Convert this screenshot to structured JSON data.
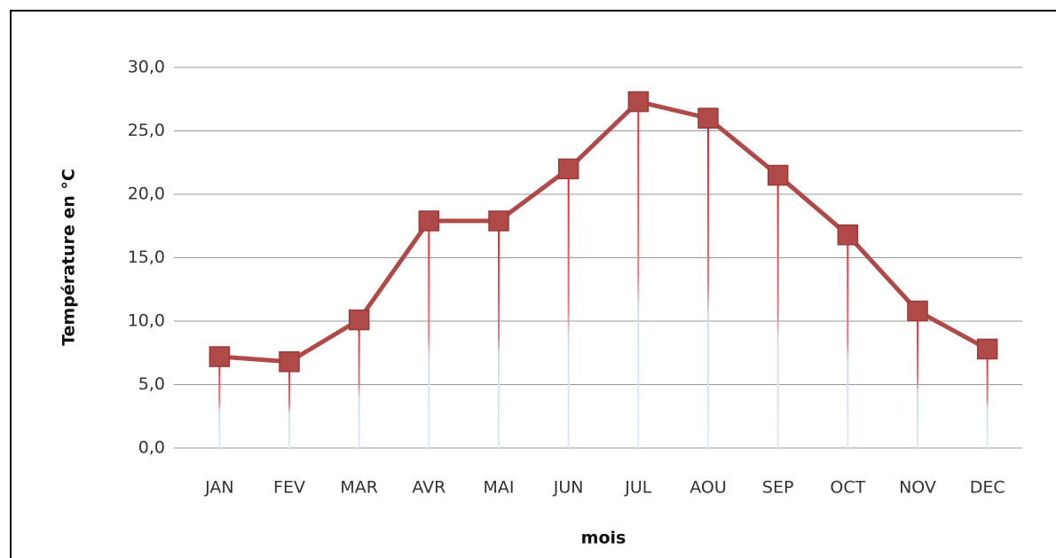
{
  "chart_data": {
    "type": "line",
    "x_label": "mois",
    "y_label": "Température en °C",
    "categories": [
      "JAN",
      "FEV",
      "MAR",
      "AVR",
      "MAI",
      "JUN",
      "JUL",
      "AOU",
      "SEP",
      "OCT",
      "NOV",
      "DEC"
    ],
    "series": [
      {
        "color": "#b04a48",
        "values": [
          7.2,
          6.8,
          10.1,
          17.9,
          17.9,
          22.0,
          27.3,
          26.0,
          21.5,
          16.8,
          10.8,
          7.8
        ]
      }
    ],
    "ylim": [
      0,
      30
    ],
    "yticks": [
      {
        "value": 0,
        "label": "0,0"
      },
      {
        "value": 5,
        "label": "5,0"
      },
      {
        "value": 10,
        "label": "10,0"
      },
      {
        "value": 15,
        "label": "15,0"
      },
      {
        "value": 20,
        "label": "20,0"
      },
      {
        "value": 25,
        "label": "25,0"
      },
      {
        "value": 30,
        "label": "30,0"
      }
    ],
    "grid": true,
    "drop_lines": true
  }
}
